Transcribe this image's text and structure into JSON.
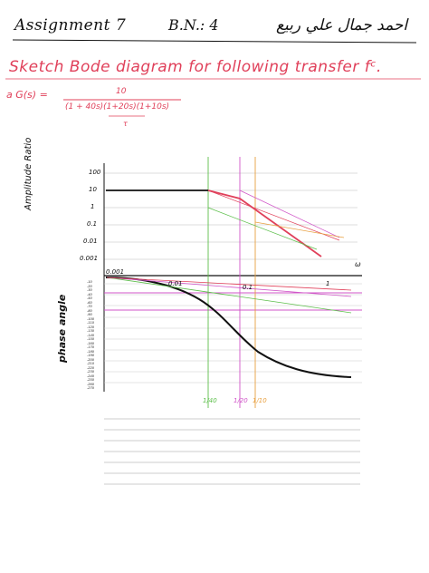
{
  "header": {
    "title": "Assignment 7",
    "bn": "B.N.: 4",
    "name": "احمد جمال علي ربيع"
  },
  "task": {
    "heading": "Sketch Bode diagram for following transfer fᶜ.",
    "tf_lhs": "a G(s) =",
    "tf_numerator": "10",
    "tf_denominator": "(1 + 40s)(1+20s)(1+10s)",
    "tf_tau": "τ"
  },
  "magnitude_plot": {
    "y_title": "Amplitude Ratio",
    "y_ticks": [
      "100",
      "10",
      "1",
      "0.1",
      "0.01",
      "0.001"
    ],
    "x_ticks": [
      "0.001",
      "0.01",
      "0.1",
      "1"
    ],
    "x_unit": "ω"
  },
  "phase_plot": {
    "y_title": "phase angle",
    "y_ticks": [
      "-10",
      "-20",
      "-30",
      "-40",
      "-50",
      "-60",
      "-70",
      "-80",
      "-90",
      "-100",
      "-110",
      "-120",
      "-130",
      "-140",
      "-150",
      "-160",
      "-170",
      "-180",
      "-190",
      "-200",
      "-210",
      "-220",
      "-230",
      "-240",
      "-250",
      "-260",
      "-270"
    ]
  },
  "corner_frequencies": [
    "1/40",
    "1/20",
    "1/10"
  ],
  "colors": {
    "ink": "#111111",
    "red": "#e0405a",
    "green": "#5cbf4a",
    "magenta": "#d055c8",
    "orange": "#e8a040",
    "grid": "#bbbbbb"
  }
}
